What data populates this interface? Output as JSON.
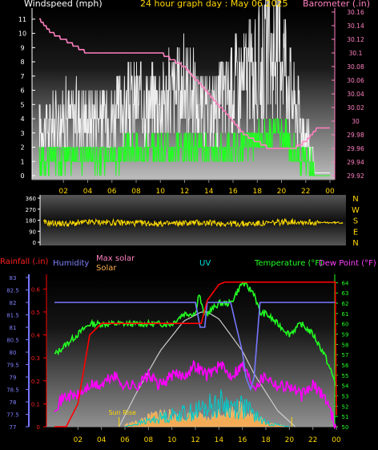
{
  "header": {
    "left": "Windspeed (mph)",
    "center": "24 hour graph day : May 06 2025",
    "right": "Barometer (.in)"
  },
  "wind_dir": {
    "letters": [
      "N",
      "W",
      "S",
      "E",
      "N"
    ],
    "ticks": [
      "360",
      "270",
      "180",
      "90",
      "0"
    ]
  },
  "lower": {
    "labels": {
      "rain": "Rainfall (.in)",
      "humidity": "Humidity",
      "max_solar": "Max solar",
      "solar": "Solar",
      "uv": "UV",
      "temperature": "Temperature (°F)",
      "dew": "Dew Point (°F)",
      "sunrise": "Sun Rise"
    },
    "rain_ticks": [
      "0.6",
      "0.5",
      "0.4",
      "0.3",
      "0.2",
      "0.1",
      "0"
    ],
    "humidity_ticks": [
      "83",
      "82.5",
      "82",
      "81.5",
      "81",
      "80.5",
      "80",
      "79.5",
      "79",
      "78.5",
      "78",
      "77.5",
      "77"
    ],
    "temp_ticks": [
      "64",
      "63",
      "62",
      "61",
      "60",
      "59",
      "58",
      "57",
      "56",
      "55",
      "54",
      "53",
      "52",
      "51",
      "50"
    ]
  },
  "colors": {
    "wind_gust": "#ffffff",
    "wind_avg": "#22ff22",
    "barometer": "#ff80c0",
    "wind_dir": "#ffdd00",
    "rain": "#ff0000",
    "humidity": "#7777ff",
    "solar": "#ffb050",
    "uv": "#00cccc",
    "temperature": "#22ff22",
    "dew": "#ff00ff",
    "max_solar": "#cccccc"
  },
  "chart_data": [
    {
      "type": "line",
      "x_ticks": [
        "02",
        "04",
        "06",
        "08",
        "10",
        "12",
        "14",
        "16",
        "18",
        "20",
        "22",
        "00"
      ],
      "y_left_ticks": [
        "11",
        "10",
        "9",
        "8",
        "7",
        "6",
        "5",
        "4",
        "3",
        "2",
        "1",
        "0"
      ],
      "y_right_ticks": [
        "30.16",
        "30.14",
        "30.12",
        "30.1",
        "30.08",
        "30.06",
        "30.04",
        "30.02",
        "30",
        "29.98",
        "29.96",
        "29.94",
        "29.92"
      ],
      "ylim_left": [
        0,
        11.5
      ],
      "ylim_right": [
        29.92,
        30.16
      ],
      "series": [
        {
          "name": "Windspeed (mph)",
          "x": [
            0,
            2,
            4,
            6,
            8,
            10,
            12,
            13,
            14,
            16,
            18,
            19,
            20,
            21,
            22,
            23,
            24
          ],
          "values": [
            3,
            4,
            4,
            4,
            5,
            5,
            6,
            5,
            4,
            6,
            7,
            8,
            9,
            5,
            3,
            0,
            0
          ]
        },
        {
          "name": "Barometer (.in)",
          "x": [
            0,
            1,
            2,
            4,
            6,
            8,
            10,
            11,
            12,
            13,
            14,
            15,
            16,
            17,
            18,
            19,
            20,
            21,
            22,
            23,
            24
          ],
          "values": [
            30.15,
            30.13,
            30.12,
            30.1,
            30.1,
            30.1,
            30.1,
            30.09,
            30.08,
            30.06,
            30.04,
            30.02,
            30,
            29.98,
            29.97,
            29.96,
            29.96,
            29.96,
            29.97,
            29.99,
            29.99
          ]
        }
      ]
    },
    {
      "type": "line",
      "x_ticks": [
        "02",
        "04",
        "06",
        "08",
        "10",
        "12",
        "14",
        "16",
        "18",
        "20",
        "22",
        "00"
      ],
      "ylim": [
        0,
        360
      ],
      "series": [
        {
          "name": "Wind direction",
          "x": [
            0,
            2,
            4,
            6,
            8,
            10,
            12,
            14,
            16,
            18,
            20,
            22,
            24
          ],
          "values": [
            160,
            150,
            165,
            160,
            155,
            150,
            160,
            155,
            150,
            155,
            170,
            160,
            160
          ]
        }
      ]
    },
    {
      "type": "line",
      "x_ticks": [
        "02",
        "04",
        "06",
        "08",
        "10",
        "12",
        "14",
        "16",
        "18",
        "20",
        "22",
        "00"
      ],
      "ylim_rain": [
        0,
        0.65
      ],
      "ylim_humidity": [
        77,
        83
      ],
      "ylim_temp": [
        50,
        64.5
      ],
      "series": [
        {
          "name": "Rainfall (.in)",
          "x": [
            0,
            1,
            2,
            3,
            4,
            5,
            6,
            7,
            8,
            9,
            10,
            11,
            12,
            12.5,
            13,
            14,
            14.5,
            15,
            16,
            17,
            18,
            20,
            22,
            23.9,
            24
          ],
          "values": [
            0,
            0,
            0.1,
            0.4,
            0.45,
            0.45,
            0.45,
            0.45,
            0.45,
            0.45,
            0.45,
            0.45,
            0.45,
            0.45,
            0.55,
            0.62,
            0.63,
            0.63,
            0.63,
            0.63,
            0.63,
            0.63,
            0.63,
            0.63,
            0.05
          ]
        },
        {
          "name": "Humidity",
          "x": [
            0,
            12,
            12.4,
            12.8,
            13,
            14,
            15,
            15.5,
            16,
            16.3,
            16.7,
            17,
            17.5,
            18,
            24
          ],
          "values": [
            82,
            82,
            81,
            81,
            82,
            82,
            82,
            81,
            80,
            79,
            78.5,
            79,
            82,
            82,
            82
          ]
        },
        {
          "name": "Temperature (°F)",
          "x": [
            0,
            1,
            2,
            3,
            4,
            6,
            8,
            10,
            11,
            12,
            12.3,
            12.7,
            13,
            14,
            15,
            16,
            17,
            17.5,
            18,
            19,
            20,
            21,
            22,
            23,
            24
          ],
          "values": [
            57,
            58,
            59,
            60,
            60,
            60,
            60,
            60,
            61,
            61,
            63,
            61,
            61,
            62,
            62,
            64,
            63,
            61,
            61,
            60,
            59,
            60,
            59,
            57,
            54
          ]
        },
        {
          "name": "Dew Point (°F)",
          "x": [
            0,
            1,
            2,
            3,
            4,
            5,
            6,
            7,
            8,
            9,
            10,
            11,
            12,
            13,
            14,
            15,
            16,
            17,
            18,
            19,
            20,
            21,
            22,
            23,
            24
          ],
          "values": [
            52,
            53,
            53,
            54,
            54,
            55,
            54,
            54,
            55,
            54,
            55,
            55,
            56,
            55,
            56,
            55,
            56,
            54,
            55,
            54,
            54,
            53,
            54,
            53,
            50
          ]
        },
        {
          "name": "Max solar",
          "x": [
            5.5,
            7,
            9,
            11,
            12.5,
            13,
            14,
            16,
            17,
            19,
            20.5
          ],
          "values": [
            0,
            0.15,
            0.33,
            0.46,
            0.5,
            0.5,
            0.47,
            0.33,
            0.23,
            0.07,
            0
          ]
        },
        {
          "name": "Solar",
          "x": [
            6,
            7,
            8,
            9,
            10,
            11,
            12,
            13,
            14,
            15,
            16,
            17,
            18,
            19,
            20
          ],
          "values": [
            0.01,
            0.02,
            0.04,
            0.06,
            0.05,
            0.04,
            0.05,
            0.03,
            0.06,
            0.07,
            0.08,
            0.05,
            0.02,
            0.01,
            0
          ]
        },
        {
          "name": "UV",
          "x": [
            6,
            8,
            10,
            12,
            14,
            15,
            16,
            17,
            18,
            20
          ],
          "values": [
            0,
            0.03,
            0.06,
            0.08,
            0.12,
            0.1,
            0.11,
            0.06,
            0.02,
            0
          ]
        }
      ]
    }
  ]
}
